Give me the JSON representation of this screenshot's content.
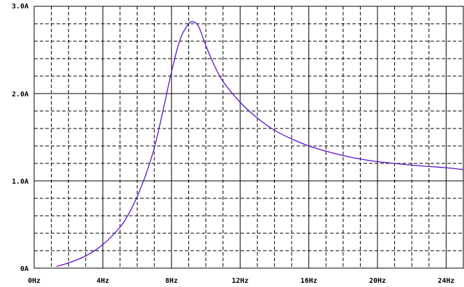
{
  "chart_data": {
    "type": "line",
    "xlim": [
      0,
      25
    ],
    "ylim": [
      0,
      3.0
    ],
    "x_ticks": [
      {
        "value": 0,
        "label": "0Hz"
      },
      {
        "value": 4,
        "label": "4Hz"
      },
      {
        "value": 8,
        "label": "8Hz"
      },
      {
        "value": 12,
        "label": "12Hz"
      },
      {
        "value": 16,
        "label": "16Hz"
      },
      {
        "value": 20,
        "label": "20Hz"
      },
      {
        "value": 24,
        "label": "24Hz"
      }
    ],
    "y_ticks": [
      {
        "value": 0,
        "label": "0A"
      },
      {
        "value": 1.0,
        "label": "1.0A"
      },
      {
        "value": 2.0,
        "label": "2.0A"
      },
      {
        "value": 3.0,
        "label": "3.0A"
      }
    ],
    "grid": true,
    "series": [
      {
        "color": "#5a10c8",
        "x": [
          1.3,
          2.0,
          3.0,
          4.0,
          5.0,
          5.5,
          6.0,
          6.5,
          7.0,
          7.5,
          8.0,
          8.5,
          9.0,
          9.3,
          9.6,
          10.0,
          10.5,
          11.0,
          12.0,
          13.0,
          14.0,
          15.0,
          16.0,
          17.0,
          18.0,
          19.0,
          20.0,
          21.0,
          22.0,
          23.0,
          24.0,
          25.0
        ],
        "y": [
          0.02,
          0.06,
          0.14,
          0.27,
          0.47,
          0.62,
          0.82,
          1.07,
          1.38,
          1.8,
          2.25,
          2.62,
          2.8,
          2.82,
          2.76,
          2.55,
          2.32,
          2.14,
          1.9,
          1.72,
          1.58,
          1.48,
          1.4,
          1.34,
          1.29,
          1.25,
          1.22,
          1.2,
          1.18,
          1.165,
          1.15,
          1.13
        ]
      }
    ]
  }
}
